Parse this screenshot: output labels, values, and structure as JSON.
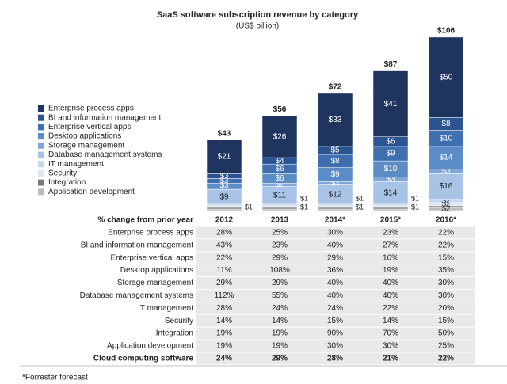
{
  "chart_data": {
    "type": "bar",
    "stacked": true,
    "title": "SaaS software subscription revenue by category",
    "subtitle": "(US$ billion)",
    "categories": [
      "2012",
      "2013",
      "2014*",
      "2015*",
      "2016*"
    ],
    "totals": [
      43,
      56,
      72,
      87,
      106
    ],
    "totals_labels": [
      "$43",
      "$56",
      "$72",
      "$87",
      "$106"
    ],
    "legend": "left",
    "series": [
      {
        "name": "Enterprise process apps",
        "color": "#1f3560",
        "values": [
          21,
          26,
          33,
          41,
          50
        ],
        "value_labels": [
          "$21",
          "$26",
          "$33",
          "$41",
          "$50"
        ]
      },
      {
        "name": "BI and information management",
        "color": "#2c5491",
        "values": [
          3,
          4,
          5,
          6,
          8
        ],
        "value_labels": [
          "$3",
          "$4",
          "$5",
          "$6",
          "$8"
        ]
      },
      {
        "name": "Enterprise vertical apps",
        "color": "#3f6fae",
        "values": [
          3,
          6,
          8,
          9,
          10
        ],
        "value_labels": [
          "$3",
          "$6",
          "$8",
          "$9",
          "$10"
        ]
      },
      {
        "name": "Desktop applications",
        "color": "#5b8cc6",
        "values": [
          3,
          6,
          9,
          10,
          14
        ],
        "value_labels": [
          "$3",
          "$6",
          "$9",
          "$10",
          "$14"
        ]
      },
      {
        "name": "Storage management",
        "color": "#7fa6d6",
        "values": [
          1,
          2,
          2,
          3,
          3
        ],
        "value_labels": [
          null,
          "$2",
          "$2",
          "$3",
          "$3"
        ]
      },
      {
        "name": "Database management systems",
        "color": "#a8c3e5",
        "values": [
          9,
          11,
          12,
          14,
          16
        ],
        "value_labels": [
          "$9",
          "$11",
          "$12",
          "$14",
          "$16"
        ]
      },
      {
        "name": "IT management",
        "color": "#c4d7ee",
        "values": [
          1,
          1,
          1,
          1,
          2
        ],
        "value_labels": [
          "$1",
          "$1",
          "$1",
          "$1",
          "$2"
        ]
      },
      {
        "name": "Security",
        "color": "#dde8f5",
        "values": [
          1,
          1,
          1,
          1,
          2
        ],
        "value_labels": [
          null,
          "$1",
          "$1",
          "$1",
          "$2"
        ]
      },
      {
        "name": "Integration",
        "color": "#7a7a7a",
        "values": [
          1,
          1,
          1,
          1,
          1
        ],
        "value_labels": [
          null,
          null,
          null,
          null,
          null
        ]
      },
      {
        "name": "Application development",
        "color": "#bdbdbd",
        "values": [
          1,
          1,
          1,
          1,
          2
        ],
        "value_labels": [
          null,
          null,
          null,
          null,
          "$2"
        ]
      }
    ]
  },
  "table": {
    "header": [
      "% change from prior year",
      "2012",
      "2013",
      "2014*",
      "2015*",
      "2016*"
    ],
    "rows": [
      [
        "Enterprise process apps",
        "28%",
        "25%",
        "30%",
        "23%",
        "22%"
      ],
      [
        "BI and information management",
        "43%",
        "23%",
        "40%",
        "27%",
        "22%"
      ],
      [
        "Enterprise vertical apps",
        "22%",
        "29%",
        "29%",
        "16%",
        "15%"
      ],
      [
        "Desktop applications",
        "11%",
        "108%",
        "36%",
        "19%",
        "35%"
      ],
      [
        "Storage management",
        "29%",
        "29%",
        "40%",
        "40%",
        "30%"
      ],
      [
        "Database management systems",
        "112%",
        "55%",
        "40%",
        "40%",
        "30%"
      ],
      [
        "IT management",
        "28%",
        "24%",
        "24%",
        "22%",
        "20%"
      ],
      [
        "Security",
        "14%",
        "14%",
        "15%",
        "14%",
        "15%"
      ],
      [
        "Integration",
        "19%",
        "19%",
        "90%",
        "70%",
        "50%"
      ],
      [
        "Application development",
        "19%",
        "19%",
        "30%",
        "30%",
        "25%"
      ],
      [
        "Cloud computing software",
        "24%",
        "29%",
        "28%",
        "21%",
        "22%"
      ]
    ]
  },
  "footnote": "*Forrester forecast"
}
